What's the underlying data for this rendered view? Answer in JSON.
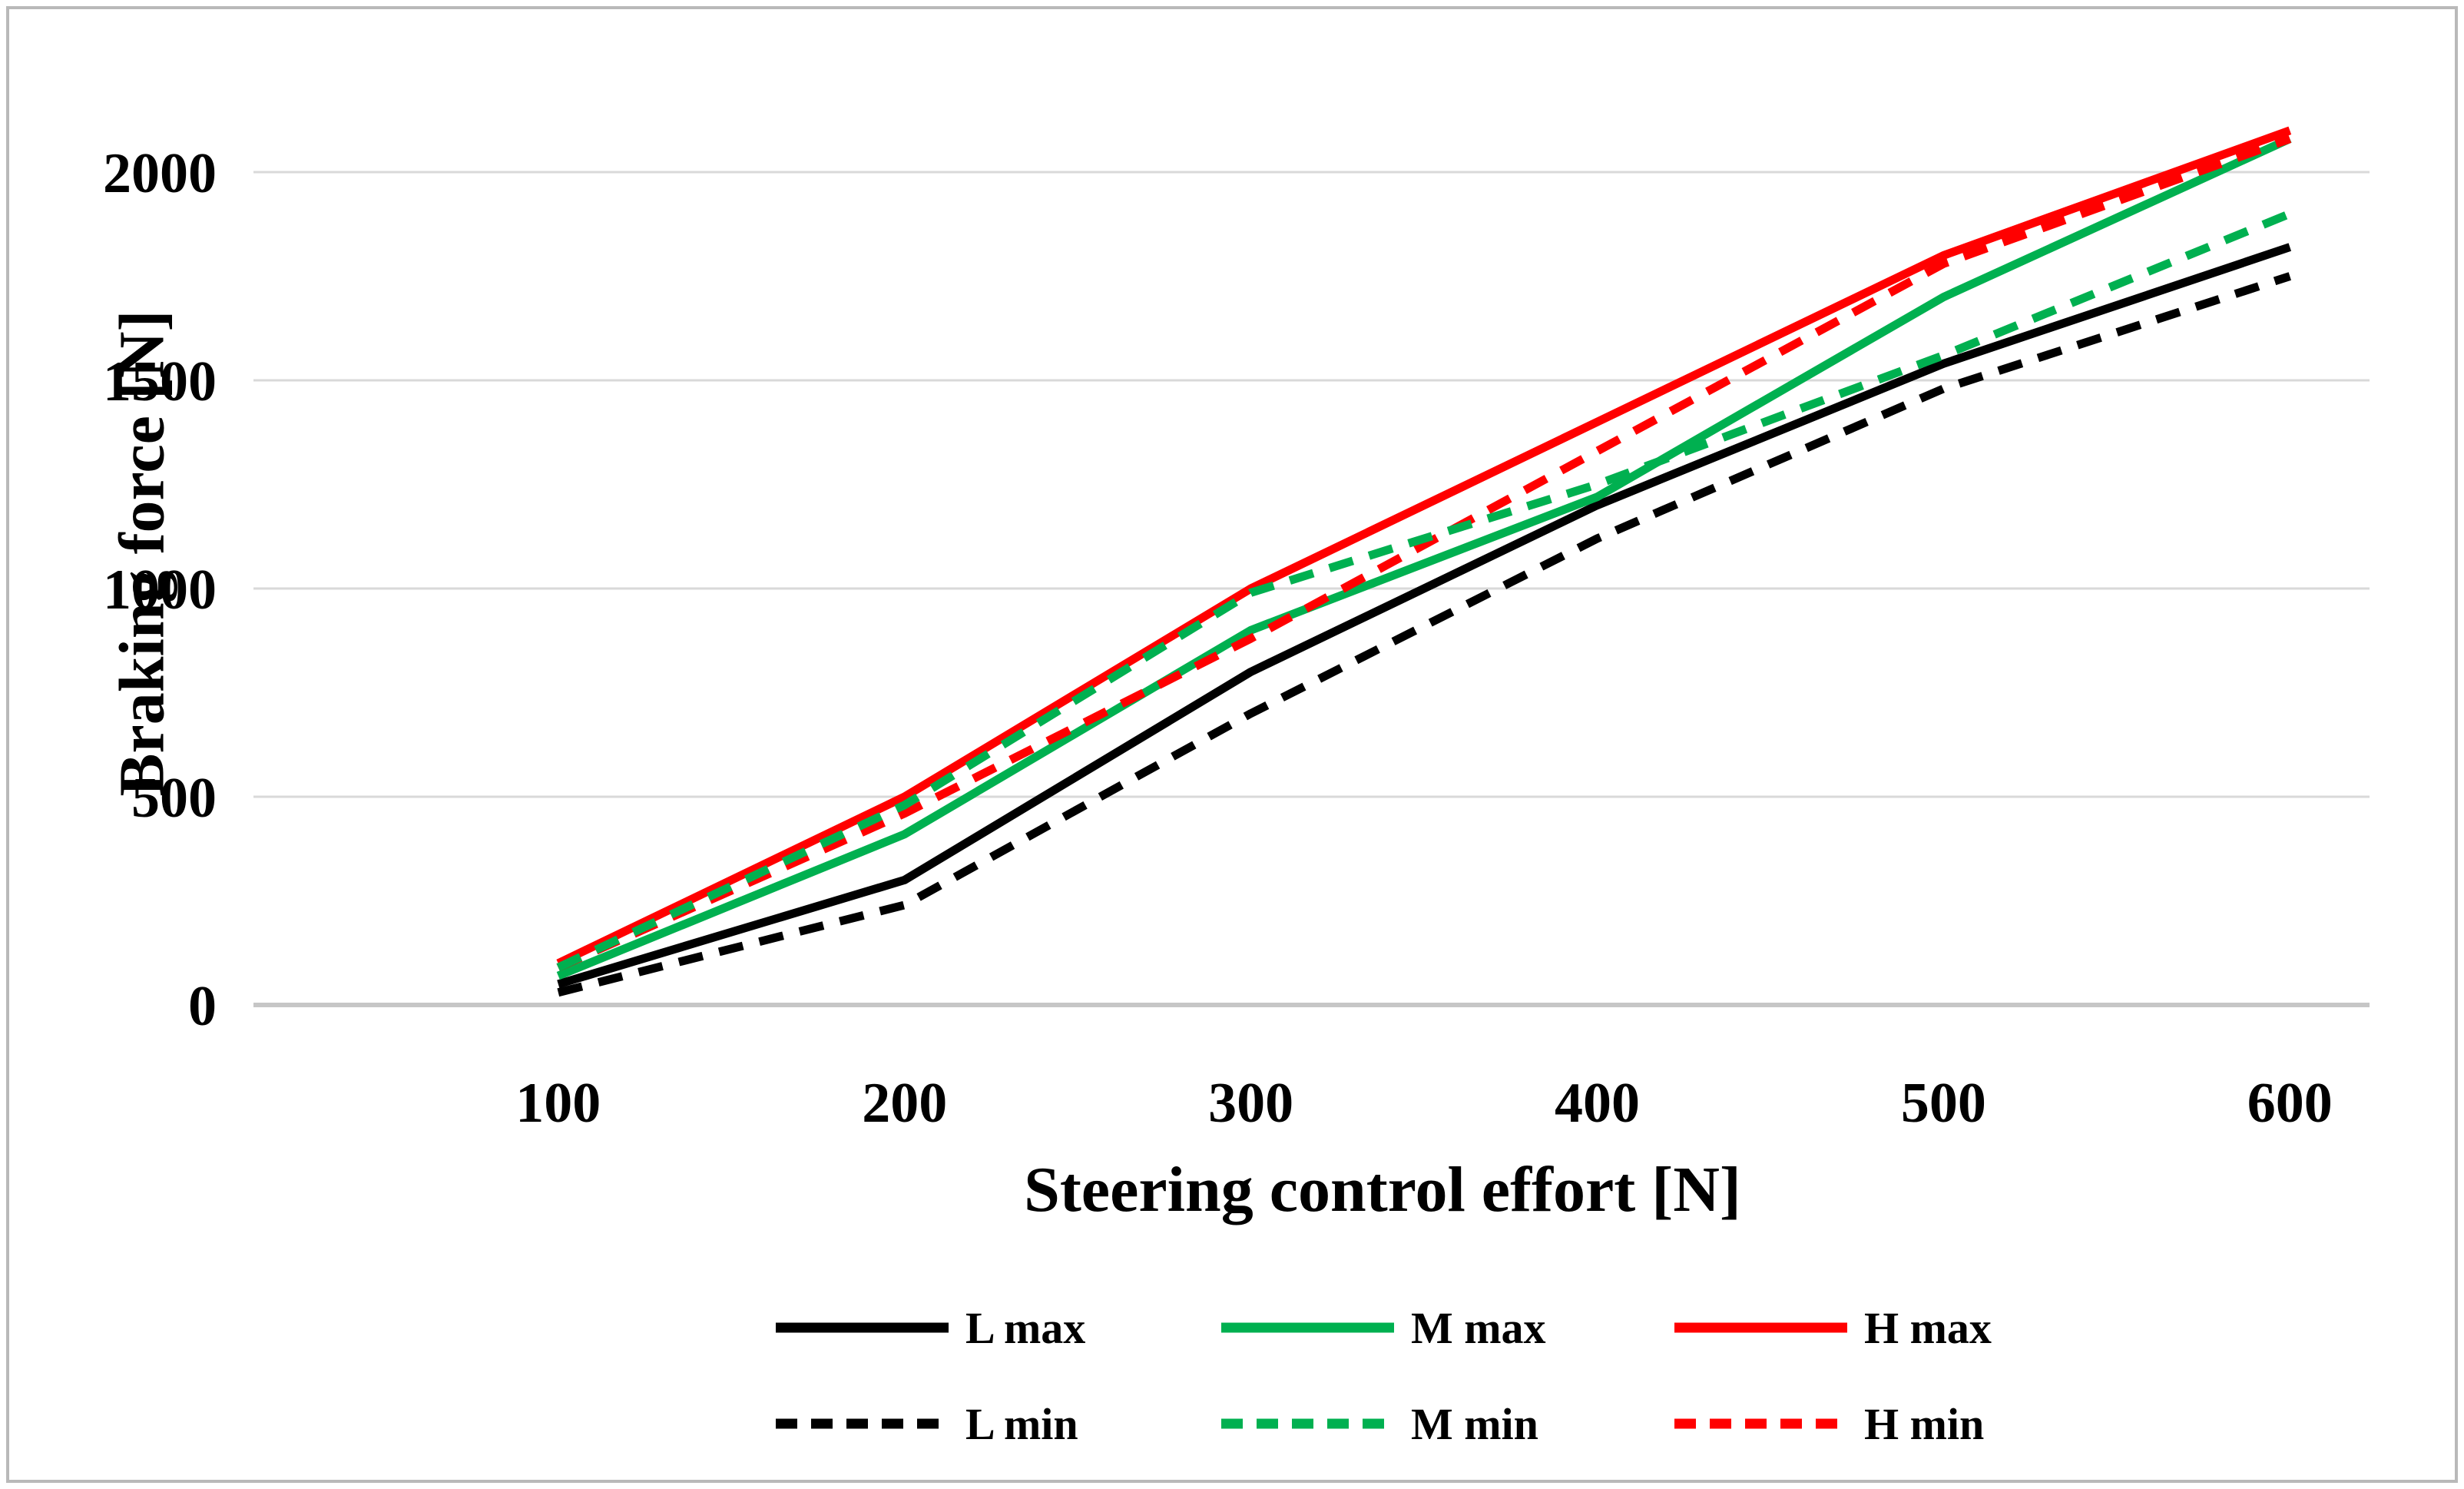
{
  "figure": {
    "background": "#ffffff",
    "border_color": "#b9b9b9"
  },
  "chart_data": {
    "type": "line",
    "title": "",
    "xlabel": "Steering control effort [N]",
    "ylabel": "Braking force [N]",
    "x": [
      100,
      200,
      300,
      400,
      500,
      600
    ],
    "x_ticks": [
      "100",
      "200",
      "300",
      "400",
      "500",
      "600"
    ],
    "y_ticks": [
      "0",
      "500",
      "1000",
      "1500",
      "2000"
    ],
    "y_tick_values": [
      0,
      500,
      1000,
      1500,
      2000
    ],
    "xlim": [
      12,
      623
    ],
    "ylim": [
      0,
      2200
    ],
    "grid": "horizontal",
    "gridline_color": "#d9d9d9",
    "axisline_color": "#c6c6c6",
    "series": [
      {
        "name": "L max",
        "color": "#000000",
        "dash": "solid",
        "values": [
          50,
          300,
          800,
          1200,
          1540,
          1820
        ]
      },
      {
        "name": "L min",
        "color": "#000000",
        "dash": "dashed",
        "values": [
          30,
          240,
          700,
          1120,
          1480,
          1750
        ]
      },
      {
        "name": "M max",
        "color": "#00b050",
        "dash": "solid",
        "values": [
          70,
          410,
          900,
          1220,
          1700,
          2080
        ]
      },
      {
        "name": "H max",
        "color": "#ff0000",
        "dash": "solid",
        "values": [
          100,
          500,
          1000,
          1400,
          1800,
          2100
        ]
      },
      {
        "name": "H min",
        "color": "#ff0000",
        "dash": "dashed",
        "values": [
          90,
          460,
          880,
          1330,
          1780,
          2080
        ]
      },
      {
        "name": "M min",
        "color": "#00b050",
        "dash": "dashed",
        "values": [
          90,
          480,
          990,
          1250,
          1560,
          1900
        ]
      }
    ],
    "legend": {
      "position": "bottom",
      "rows": [
        [
          "L max",
          "M max",
          "H max"
        ],
        [
          "L min",
          "M min",
          "H min"
        ]
      ]
    }
  }
}
